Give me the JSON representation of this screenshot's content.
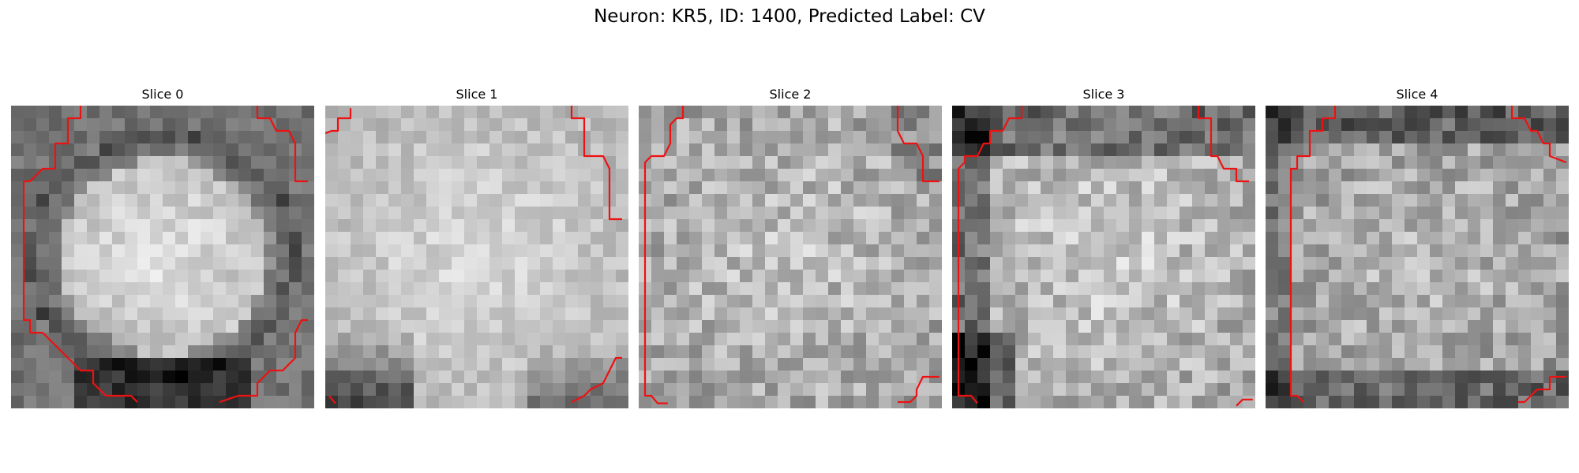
{
  "figure": {
    "title": "Neuron: KR5, ID: 1400, Predicted Label: CV"
  },
  "panels": [
    {
      "title": "Slice 0",
      "seed": 11,
      "shape": "ring",
      "contour_color": "#ee1111"
    },
    {
      "title": "Slice 1",
      "seed": 23,
      "shape": "bright-top",
      "contour_color": "#ee1111"
    },
    {
      "title": "Slice 2",
      "seed": 37,
      "shape": "noisy",
      "contour_color": "#ee1111"
    },
    {
      "title": "Slice 3",
      "seed": 41,
      "shape": "noisy-dark-left",
      "contour_color": "#ee1111"
    },
    {
      "title": "Slice 4",
      "seed": 59,
      "shape": "noisy-dark-top",
      "contour_color": "#ee1111"
    }
  ],
  "colormap": "gray",
  "axes_visible": false
}
